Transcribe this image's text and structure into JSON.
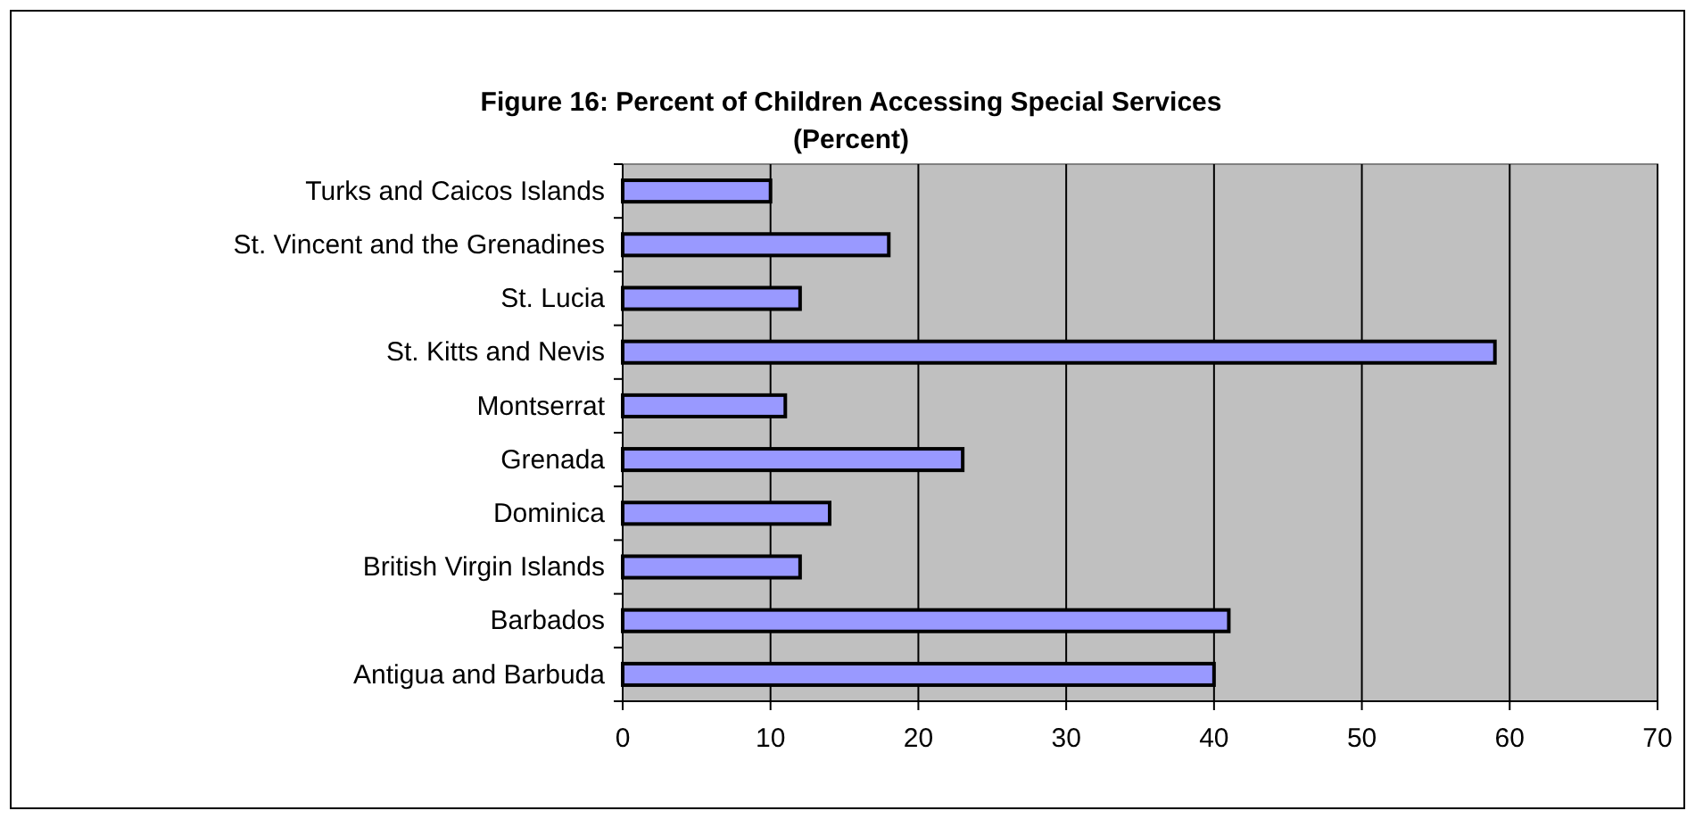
{
  "chart_data": {
    "type": "bar",
    "orientation": "horizontal",
    "title": "Figure 16:  Percent of Children Accessing Special Services",
    "subtitle": "(Percent)",
    "categories": [
      "Turks and Caicos Islands",
      "St. Vincent and the Grenadines",
      "St. Lucia",
      "St. Kitts and Nevis",
      "Montserrat",
      "Grenada",
      "Dominica",
      "British Virgin Islands",
      "Barbados",
      "Antigua and Barbuda"
    ],
    "values": [
      10,
      18,
      12,
      59,
      11,
      23,
      14,
      12,
      41,
      40
    ],
    "color": "#9999ff",
    "xlim": [
      0,
      70
    ],
    "xticks": [
      0,
      10,
      20,
      30,
      40,
      50,
      60,
      70
    ],
    "grid": "x"
  }
}
